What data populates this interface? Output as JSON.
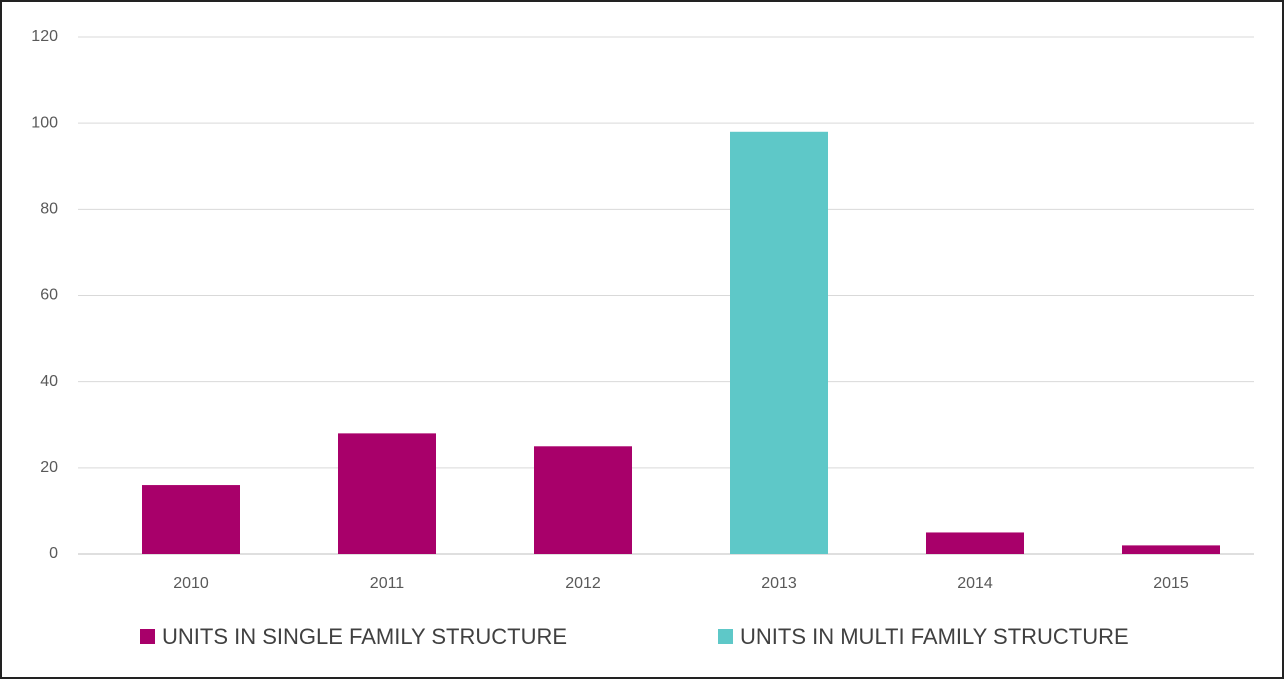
{
  "chart_data": {
    "type": "bar",
    "stacked": true,
    "categories": [
      "2010",
      "2011",
      "2012",
      "2013",
      "2014",
      "2015"
    ],
    "series": [
      {
        "name": "UNITS IN SINGLE FAMILY STRUCTURE",
        "color": "#a8006a",
        "values": [
          16,
          28,
          25,
          null,
          5,
          2
        ]
      },
      {
        "name": "UNITS IN MULTI FAMILY STRUCTURE",
        "color": "#5ec8c8",
        "values": [
          null,
          null,
          null,
          98,
          null,
          null
        ]
      }
    ],
    "ylim": [
      0,
      120
    ],
    "yticks": [
      0,
      20,
      40,
      60,
      80,
      100,
      120
    ],
    "grid": true,
    "legend": "bottom"
  }
}
